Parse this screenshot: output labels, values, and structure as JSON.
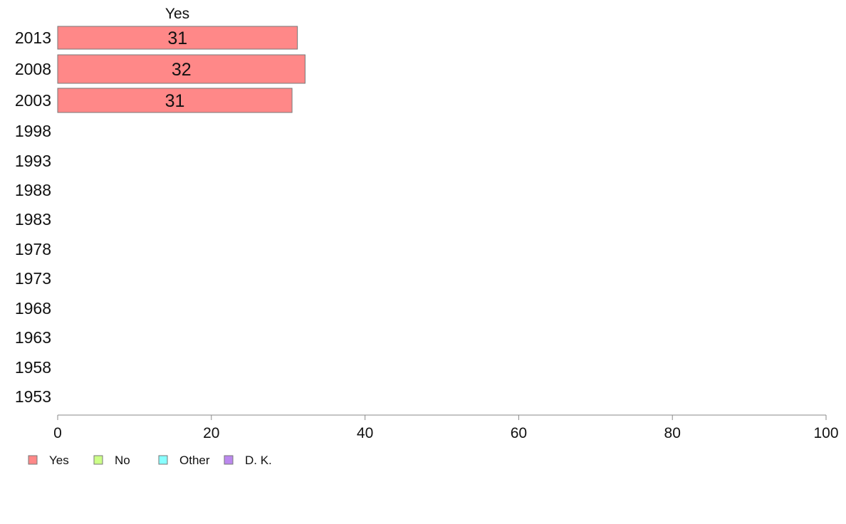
{
  "chart_data": {
    "type": "bar",
    "orientation": "horizontal",
    "stacked": true,
    "categories": [
      "2013",
      "2008",
      "2003",
      "1998",
      "1993",
      "1988",
      "1983",
      "1978",
      "1973",
      "1968",
      "1963",
      "1958",
      "1953"
    ],
    "series": [
      {
        "name": "Yes",
        "color": "#ff8888",
        "values": [
          31.2,
          32.2,
          30.5,
          null,
          null,
          null,
          null,
          null,
          null,
          null,
          null,
          null,
          null
        ],
        "labels": [
          "31",
          "32",
          "31",
          "",
          "",
          "",
          "",
          "",
          "",
          "",
          "",
          "",
          ""
        ]
      },
      {
        "name": "No",
        "color": "#ccff88",
        "values": [
          null,
          null,
          null,
          null,
          null,
          null,
          null,
          null,
          null,
          null,
          null,
          null,
          null
        ]
      },
      {
        "name": "Other",
        "color": "#88ffff",
        "values": [
          null,
          null,
          null,
          null,
          null,
          null,
          null,
          null,
          null,
          null,
          null,
          null,
          null
        ]
      },
      {
        "name": "D. K.",
        "color": "#bb88ee",
        "values": [
          null,
          null,
          null,
          null,
          null,
          null,
          null,
          null,
          null,
          null,
          null,
          null,
          null
        ]
      }
    ],
    "column_header": "Yes",
    "xlim": [
      0,
      100
    ],
    "xticks": [
      "0",
      "20",
      "40",
      "60",
      "80",
      "100"
    ],
    "grid": false,
    "legend_position": "bottom-left"
  }
}
